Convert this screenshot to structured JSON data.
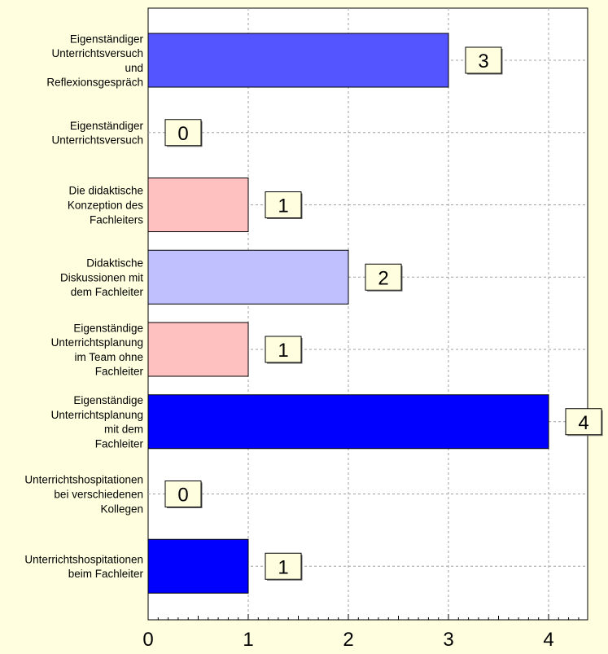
{
  "chart_data": {
    "type": "bar",
    "orientation": "horizontal",
    "title": "",
    "xlabel": "",
    "ylabel": "",
    "xlim": [
      0,
      4.4
    ],
    "x_ticks": [
      0,
      1,
      2,
      3,
      4
    ],
    "grid": true,
    "categories": [
      [
        "Eigenständiger",
        "Unterrichtsversuch",
        "und",
        "Reflexionsgespräch"
      ],
      [
        "Eigenständiger",
        "Unterrichtsversuch"
      ],
      [
        "Die didaktische",
        "Konzeption des",
        "Fachleiters"
      ],
      [
        "Didaktische",
        "Diskussionen mit",
        "dem Fachleiter"
      ],
      [
        "Eigenständige",
        "Unterrichtsplanung",
        "im Team ohne",
        "Fachleiter"
      ],
      [
        "Eigenständige",
        "Unterrichtsplanung",
        "mit dem",
        "Fachleiter"
      ],
      [
        "Unterrichtshospitationen",
        "bei verschiedenen",
        "Kollegen"
      ],
      [
        "Unterrichtshospitationen",
        "beim Fachleiter"
      ]
    ],
    "values": [
      3,
      0,
      1,
      2,
      1,
      4,
      0,
      1
    ],
    "value_labels": [
      "3",
      "0",
      "1",
      "2",
      "1",
      "4",
      "0",
      "1"
    ],
    "tick_labels": [
      "0",
      "1",
      "2",
      "3",
      "4"
    ],
    "bar_colors": [
      "#5555ff",
      "#5555ff",
      "#ffc0c0",
      "#c0c0ff",
      "#ffc0c0",
      "#0000ff",
      "#0000ff",
      "#0000ff"
    ]
  },
  "colors": {
    "background": "#ffffe0",
    "plot_background": "#ffffff",
    "grid": "#a0a0a0",
    "label_box": "#ffffe0"
  }
}
